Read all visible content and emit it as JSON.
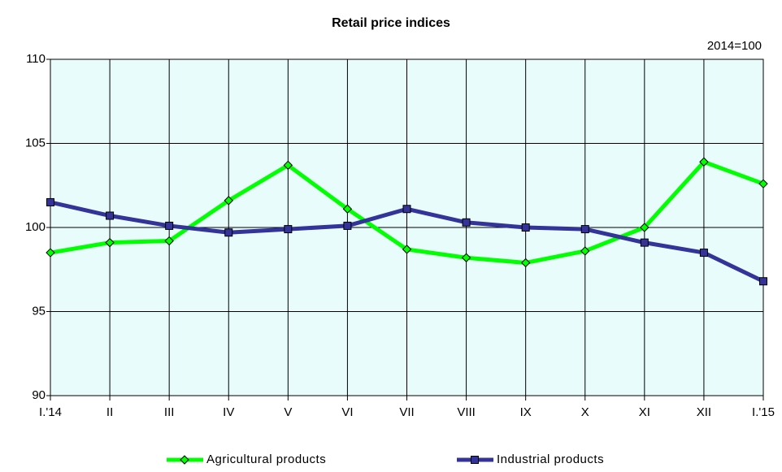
{
  "chart_data": {
    "type": "line",
    "title": "Retail price indices",
    "annotation": "2014=100",
    "categories": [
      "I.'14",
      "II",
      "III",
      "IV",
      "V",
      "VI",
      "VII",
      "VIII",
      "IX",
      "X",
      "XI",
      "XII",
      "I.'15"
    ],
    "series": [
      {
        "name": "Agricultural products",
        "color": "#00ff00",
        "marker": "diamond",
        "values": [
          98.5,
          99.1,
          99.2,
          101.6,
          103.7,
          101.1,
          98.7,
          98.2,
          97.9,
          98.6,
          100.0,
          103.9,
          102.6
        ]
      },
      {
        "name": "Industrial products",
        "color": "#333399",
        "marker": "square",
        "values": [
          101.5,
          100.7,
          100.1,
          99.7,
          99.9,
          100.1,
          101.1,
          100.3,
          100.0,
          99.9,
          99.1,
          98.5,
          96.8
        ]
      }
    ],
    "ylim": [
      90,
      110
    ],
    "yticks": [
      90,
      95,
      100,
      105,
      110
    ],
    "grid": true,
    "legend": "bottom",
    "plot_background": "#e8fcfc"
  }
}
